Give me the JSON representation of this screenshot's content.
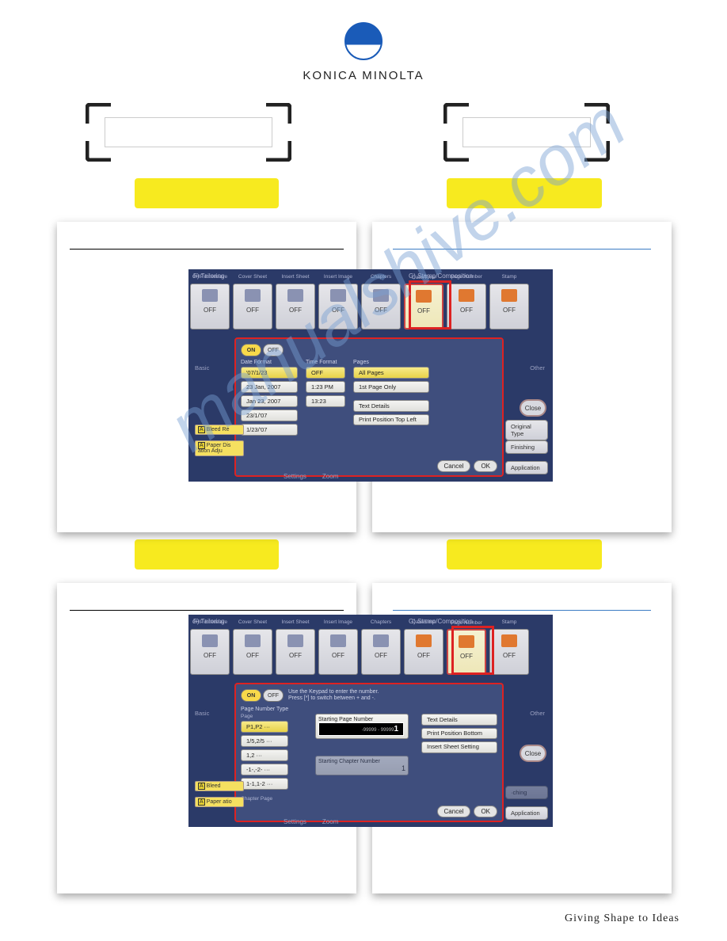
{
  "brand": {
    "name": "KONICA MINOLTA",
    "tagline": "Giving Shape to Ideas"
  },
  "screen1": {
    "section_left": "F)  Tailoring",
    "section_right": "G)  Stamp/Composition",
    "funcs": [
      {
        "label": "OHP Interleave",
        "state": "OFF"
      },
      {
        "label": "Cover Sheet",
        "state": "OFF"
      },
      {
        "label": "Insert Sheet",
        "state": "OFF"
      },
      {
        "label": "Insert Image",
        "state": "OFF"
      },
      {
        "label": "Chapters",
        "state": "OFF"
      },
      {
        "label": "Date/Time",
        "state": "OFF",
        "hilite": true
      },
      {
        "label": "Page Number",
        "state": "OFF"
      },
      {
        "label": "Stamp",
        "state": "OFF"
      }
    ],
    "dialog": {
      "title": "Date/Time",
      "date_format_label": "Date Format",
      "date_formats": [
        "'07/1/23",
        "23 Jan, 2007",
        "Jan 23, 2007",
        "23/1/'07",
        "1/23/'07"
      ],
      "date_selected": 0,
      "time_format_label": "Time Format",
      "time_formats": [
        "OFF",
        "1:23 PM",
        "13:23"
      ],
      "time_selected": 0,
      "pages_label": "Pages",
      "pages": [
        "All Pages",
        "1st Page Only"
      ],
      "pages_selected": 0,
      "text_details": "Text Details",
      "print_position": "Print Position Top Left",
      "cancel": "Cancel",
      "ok": "OK"
    },
    "side": {
      "original": "Original Type",
      "finishing": "Finishing",
      "application": "Application",
      "close": "Close",
      "other": "Other",
      "basic": "Basic"
    },
    "left_labels": {
      "bleed": "Bleed Re",
      "paper": "Paper Dis ation Adju"
    },
    "bottom": {
      "settings": "Settings",
      "zoom": "Zoom"
    }
  },
  "screen2": {
    "funcs": [
      {
        "label": "OHP Interleave",
        "state": "OFF"
      },
      {
        "label": "Cover Sheet",
        "state": "OFF"
      },
      {
        "label": "Insert Sheet",
        "state": "OFF"
      },
      {
        "label": "Insert Image",
        "state": "OFF"
      },
      {
        "label": "Chapters",
        "state": "OFF"
      },
      {
        "label": "Date/Time",
        "state": "OFF"
      },
      {
        "label": "Page Number",
        "state": "OFF",
        "hilite": true
      },
      {
        "label": "Stamp",
        "state": "OFF"
      }
    ],
    "dialog": {
      "title": "Page Number",
      "msg1": "Use the Keypad to enter the number.",
      "msg2": "Press [*] to switch between + and -.",
      "type_label": "Page Number Type",
      "page_label": "Page",
      "chapter_label": "Chapter Page",
      "types": [
        "P1,P2 ···",
        "1/5,2/5 ···",
        "1,2 ···",
        "-1-,-2- ···",
        "1-1,1-2 ···"
      ],
      "type_selected": 0,
      "start_page_label": "Starting Page Number",
      "start_page_range": "-99999 - 99999",
      "start_page": "1",
      "start_chapter_label": "Starting Chapter Number",
      "start_chapter": "1",
      "text_details": "Text Details",
      "print_position": "Print Position Bottom",
      "insert_sheet": "Insert Sheet Setting",
      "cancel": "Cancel",
      "ok": "OK"
    }
  },
  "colors": {
    "accent": "#1a5bb8",
    "highlight": "#f7ea1f",
    "redbox": "#d22",
    "panel_bg": "#2b3a68",
    "sel_bg": "#f7eb8a"
  }
}
